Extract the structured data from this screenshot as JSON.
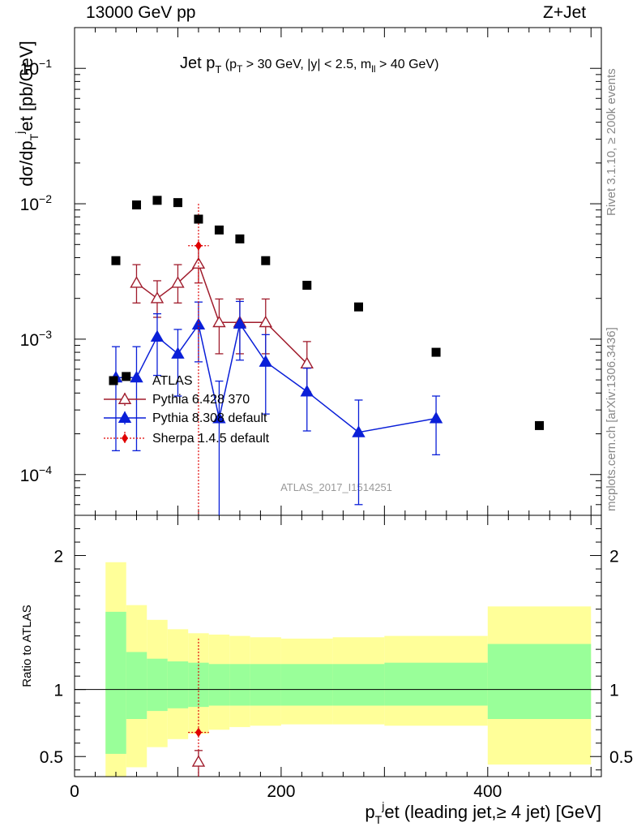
{
  "header": {
    "left": "13000 GeV pp",
    "right": "Z+Jet"
  },
  "side": {
    "rivet": "Rivet 3.1.10, ≥ 200k events",
    "mcplots": "mcplots.cern.ch [arXiv:1306.3436]"
  },
  "chart_data": [
    {
      "type": "scatter",
      "title": "Jet pT (pT > 30 GeV, |y| < 2.5, mll > 40 GeV)",
      "title_main": "Jet p",
      "title_sub": "T",
      "title_cuts": "(p",
      "title_cuts_sub": "T",
      "title_cuts_rest": "> 30 GeV, |y| < 2.5, m",
      "title_cuts_sub2": "ll",
      "title_cuts_end": "> 40 GeV)",
      "ylabel": "dσ/dp",
      "ylabel_sub": "T",
      "ylabel_sup": "j",
      "ylabel_rest": "et [pb/GeV]",
      "yscale": "log",
      "xlim": [
        0,
        510
      ],
      "ylim": [
        5e-05,
        0.2
      ],
      "y_ticks": [
        {
          "value": 0.1,
          "base": "10",
          "exp": "−1"
        },
        {
          "value": 0.01,
          "base": "10",
          "exp": "−2"
        },
        {
          "value": 0.001,
          "base": "10",
          "exp": "−3"
        },
        {
          "value": 0.0001,
          "base": "10",
          "exp": "−4"
        }
      ],
      "watermark": "ATLAS_2017_I1514251",
      "legend_position": "lower-left",
      "series": [
        {
          "name": "ATLAS",
          "color": "#000000",
          "marker": "square",
          "x": [
            40,
            50,
            60,
            80,
            100,
            120,
            140,
            160,
            185,
            225,
            275,
            350,
            450
          ],
          "y": [
            0.0038,
            0.00053,
            0.0098,
            0.0106,
            0.0102,
            0.0077,
            0.0064,
            0.0055,
            0.0038,
            0.0025,
            0.00173,
            0.0008,
            0.00023
          ]
        },
        {
          "name": "Pythia 6.428 370",
          "color": "#a01c2c",
          "marker": "open-triangle",
          "x": [
            60,
            80,
            100,
            120,
            140,
            160,
            185,
            225
          ],
          "y": [
            0.0026,
            0.002,
            0.0026,
            0.0036,
            0.00133,
            0.00133,
            0.00133,
            0.00066
          ],
          "yerr_up": [
            0.00095,
            0.0007,
            0.00095,
            0.0013,
            0.00065,
            0.00065,
            0.00065,
            0.0003
          ],
          "yerr_down": [
            0.00075,
            0.00055,
            0.00075,
            0.001,
            0.00055,
            0.00055,
            0.00055,
            0.00025
          ]
        },
        {
          "name": "Pythia 8.308 default",
          "color": "#0a1fd8",
          "marker": "triangle",
          "x": [
            40,
            60,
            80,
            100,
            120,
            140,
            160,
            185,
            225,
            275,
            350
          ],
          "y": [
            0.00052,
            0.00052,
            0.00104,
            0.00078,
            0.00128,
            0.00026,
            0.0013,
            0.00068,
            0.00041,
            0.000205,
            0.00026
          ],
          "yerr_up": [
            0.00036,
            0.00036,
            0.0005,
            0.0004,
            0.0006,
            0.00023,
            0.0006,
            0.0004,
            0.0002,
            0.00015,
            0.00012
          ],
          "yerr_down": [
            0.00037,
            0.00037,
            0.0005,
            0.0004,
            0.0006,
            0.00026,
            0.0006,
            0.0004,
            0.0002,
            0.000145,
            0.00012
          ]
        },
        {
          "name": "Sherpa 1.4.5 default",
          "color": "#e00000",
          "marker": "diamond",
          "x": [
            120
          ],
          "y": [
            0.0049
          ],
          "xerr": 10,
          "yerr_up": [
            0.0051
          ],
          "yerr_down": [
            0.0049
          ]
        }
      ]
    },
    {
      "type": "area",
      "ylabel": "Ratio to ATLAS",
      "xlabel": "p",
      "xlabel_sub": "T",
      "xlabel_sup": "j",
      "xlabel_rest": "et (leading jet,≥ 4 jet) [GeV]",
      "xlim": [
        0,
        510
      ],
      "ylim": [
        0.35,
        2.3
      ],
      "x_ticks": [
        "0",
        "200",
        "400"
      ],
      "x_tick_values": [
        0,
        200,
        400
      ],
      "y_ticks": [
        "0.5",
        "1",
        "2"
      ],
      "y_tick_values": [
        0.5,
        1,
        2
      ],
      "band_edges": [
        30,
        50,
        70,
        90,
        110,
        130,
        150,
        170,
        200,
        250,
        300,
        400,
        500
      ],
      "band_outer_low": [
        0.3,
        0.42,
        0.57,
        0.63,
        0.67,
        0.7,
        0.72,
        0.73,
        0.74,
        0.74,
        0.73,
        0.44
      ],
      "band_outer_high": [
        1.95,
        1.63,
        1.52,
        1.45,
        1.42,
        1.41,
        1.4,
        1.39,
        1.38,
        1.39,
        1.4,
        1.62
      ],
      "band_inner_low": [
        0.52,
        0.78,
        0.84,
        0.86,
        0.87,
        0.88,
        0.88,
        0.88,
        0.88,
        0.88,
        0.88,
        0.78
      ],
      "band_inner_high": [
        1.58,
        1.28,
        1.23,
        1.21,
        1.2,
        1.19,
        1.19,
        1.19,
        1.19,
        1.19,
        1.2,
        1.34
      ],
      "inner_color": "#99ff99",
      "outer_color": "#ffff99",
      "points": [
        {
          "name": "Sherpa 1.4.5 default",
          "x": 120,
          "y": 0.68,
          "color": "#e00000"
        },
        {
          "name": "Pythia 6.428 370",
          "x": 120,
          "y": 0.46,
          "color": "#a01c2c"
        }
      ]
    }
  ]
}
